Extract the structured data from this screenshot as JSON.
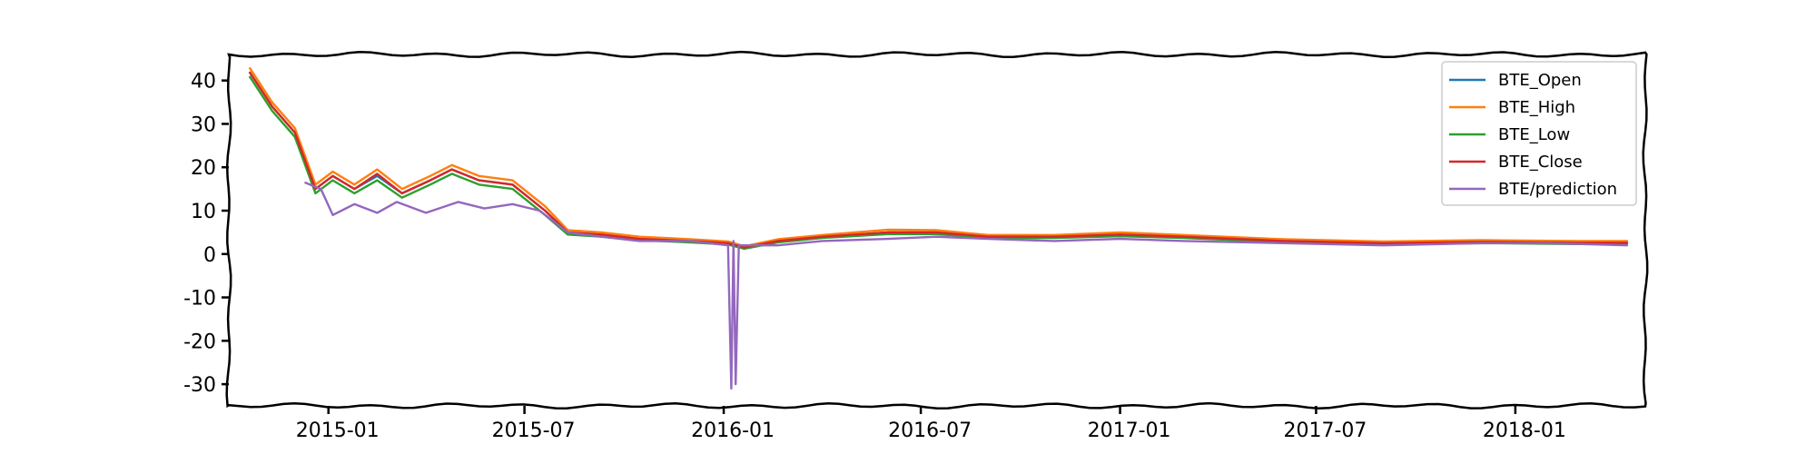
{
  "chart_data": {
    "type": "line",
    "title": "",
    "xlabel": "",
    "ylabel": "",
    "x_range": [
      "2014-10-01",
      "2018-05-01"
    ],
    "x_ticks": [
      "2015-01",
      "2015-07",
      "2016-01",
      "2016-07",
      "2017-01",
      "2017-07",
      "2018-01"
    ],
    "ylim": [
      -35,
      46
    ],
    "y_ticks": [
      40,
      30,
      20,
      10,
      0,
      -10,
      -20,
      -30
    ],
    "grid": false,
    "legend_position": "top-right",
    "series": [
      {
        "name": "BTE_Open",
        "color": "#1f77b4",
        "points": [
          [
            "2014-10-20",
            42
          ],
          [
            "2014-11-10",
            34
          ],
          [
            "2014-12-01",
            28
          ],
          [
            "2014-12-20",
            15
          ],
          [
            "2015-01-05",
            18
          ],
          [
            "2015-01-25",
            15
          ],
          [
            "2015-02-15",
            18
          ],
          [
            "2015-03-10",
            14
          ],
          [
            "2015-04-05",
            17
          ],
          [
            "2015-04-25",
            19.5
          ],
          [
            "2015-05-20",
            17
          ],
          [
            "2015-06-20",
            16
          ],
          [
            "2015-07-20",
            10
          ],
          [
            "2015-08-10",
            5
          ],
          [
            "2015-09-10",
            4.5
          ],
          [
            "2015-10-15",
            3.5
          ],
          [
            "2015-12-01",
            3
          ],
          [
            "2016-01-05",
            2.5
          ],
          [
            "2016-01-20",
            1.5
          ],
          [
            "2016-02-20",
            3
          ],
          [
            "2016-04-01",
            4
          ],
          [
            "2016-06-01",
            5
          ],
          [
            "2016-07-15",
            5
          ],
          [
            "2016-09-01",
            4
          ],
          [
            "2016-11-01",
            4
          ],
          [
            "2017-01-01",
            4.5
          ],
          [
            "2017-03-01",
            4
          ],
          [
            "2017-06-01",
            3
          ],
          [
            "2017-09-01",
            2.5
          ],
          [
            "2017-12-01",
            2.8
          ],
          [
            "2018-03-01",
            2.6
          ],
          [
            "2018-04-15",
            2.6
          ]
        ]
      },
      {
        "name": "BTE_High",
        "color": "#ff7f0e",
        "points": [
          [
            "2014-10-20",
            43
          ],
          [
            "2014-11-10",
            35
          ],
          [
            "2014-12-01",
            29
          ],
          [
            "2014-12-20",
            16
          ],
          [
            "2015-01-05",
            19
          ],
          [
            "2015-01-25",
            16
          ],
          [
            "2015-02-15",
            19.5
          ],
          [
            "2015-03-10",
            15
          ],
          [
            "2015-04-05",
            18
          ],
          [
            "2015-04-25",
            20.5
          ],
          [
            "2015-05-20",
            18
          ],
          [
            "2015-06-20",
            17
          ],
          [
            "2015-07-20",
            11
          ],
          [
            "2015-08-10",
            5.5
          ],
          [
            "2015-09-10",
            5
          ],
          [
            "2015-10-15",
            4
          ],
          [
            "2015-12-01",
            3.4
          ],
          [
            "2016-01-05",
            2.9
          ],
          [
            "2016-01-20",
            1.8
          ],
          [
            "2016-02-20",
            3.4
          ],
          [
            "2016-04-01",
            4.4
          ],
          [
            "2016-06-01",
            5.6
          ],
          [
            "2016-07-15",
            5.5
          ],
          [
            "2016-09-01",
            4.4
          ],
          [
            "2016-11-01",
            4.4
          ],
          [
            "2017-01-01",
            5
          ],
          [
            "2017-03-01",
            4.4
          ],
          [
            "2017-06-01",
            3.4
          ],
          [
            "2017-09-01",
            2.9
          ],
          [
            "2017-12-01",
            3.2
          ],
          [
            "2018-03-01",
            3
          ],
          [
            "2018-04-15",
            3
          ]
        ]
      },
      {
        "name": "BTE_Low",
        "color": "#2ca02c",
        "points": [
          [
            "2014-10-20",
            41
          ],
          [
            "2014-11-10",
            33
          ],
          [
            "2014-12-01",
            27
          ],
          [
            "2014-12-20",
            14
          ],
          [
            "2015-01-05",
            17
          ],
          [
            "2015-01-25",
            14
          ],
          [
            "2015-02-15",
            17
          ],
          [
            "2015-03-10",
            13
          ],
          [
            "2015-04-05",
            16
          ],
          [
            "2015-04-25",
            18.5
          ],
          [
            "2015-05-20",
            16
          ],
          [
            "2015-06-20",
            15
          ],
          [
            "2015-07-20",
            9
          ],
          [
            "2015-08-10",
            4.5
          ],
          [
            "2015-09-10",
            4
          ],
          [
            "2015-10-15",
            3.2
          ],
          [
            "2015-12-01",
            2.7
          ],
          [
            "2016-01-05",
            2.2
          ],
          [
            "2016-01-20",
            1.2
          ],
          [
            "2016-02-20",
            2.7
          ],
          [
            "2016-04-01",
            3.7
          ],
          [
            "2016-06-01",
            4.6
          ],
          [
            "2016-07-15",
            4.6
          ],
          [
            "2016-09-01",
            3.7
          ],
          [
            "2016-11-01",
            3.7
          ],
          [
            "2017-01-01",
            4.1
          ],
          [
            "2017-03-01",
            3.7
          ],
          [
            "2017-06-01",
            2.7
          ],
          [
            "2017-09-01",
            2.2
          ],
          [
            "2017-12-01",
            2.5
          ],
          [
            "2018-03-01",
            2.3
          ],
          [
            "2018-04-15",
            2.3
          ]
        ]
      },
      {
        "name": "BTE_Close",
        "color": "#d62728",
        "points": [
          [
            "2014-10-20",
            42
          ],
          [
            "2014-11-10",
            34
          ],
          [
            "2014-12-01",
            28
          ],
          [
            "2014-12-20",
            15
          ],
          [
            "2015-01-05",
            18
          ],
          [
            "2015-01-25",
            15
          ],
          [
            "2015-02-15",
            18.5
          ],
          [
            "2015-03-10",
            14
          ],
          [
            "2015-04-05",
            17
          ],
          [
            "2015-04-25",
            19.5
          ],
          [
            "2015-05-20",
            17
          ],
          [
            "2015-06-20",
            16
          ],
          [
            "2015-07-20",
            10
          ],
          [
            "2015-08-10",
            5
          ],
          [
            "2015-09-10",
            4.5
          ],
          [
            "2015-10-15",
            3.5
          ],
          [
            "2015-12-01",
            3
          ],
          [
            "2016-01-05",
            2.5
          ],
          [
            "2016-01-20",
            1.5
          ],
          [
            "2016-02-20",
            3
          ],
          [
            "2016-04-01",
            4
          ],
          [
            "2016-06-01",
            5
          ],
          [
            "2016-07-15",
            5
          ],
          [
            "2016-09-01",
            4
          ],
          [
            "2016-11-01",
            4
          ],
          [
            "2017-01-01",
            4.5
          ],
          [
            "2017-03-01",
            4
          ],
          [
            "2017-06-01",
            3
          ],
          [
            "2017-09-01",
            2.5
          ],
          [
            "2017-12-01",
            2.8
          ],
          [
            "2018-03-01",
            2.6
          ],
          [
            "2018-04-15",
            2.6
          ]
        ]
      },
      {
        "name": "BTE/prediction",
        "color": "#9467bd",
        "points": [
          [
            "2014-12-10",
            16.5
          ],
          [
            "2014-12-25",
            15
          ],
          [
            "2015-01-05",
            9
          ],
          [
            "2015-01-25",
            11.5
          ],
          [
            "2015-02-15",
            9.5
          ],
          [
            "2015-03-05",
            12
          ],
          [
            "2015-04-01",
            9.5
          ],
          [
            "2015-05-01",
            12
          ],
          [
            "2015-05-25",
            10.5
          ],
          [
            "2015-06-20",
            11.5
          ],
          [
            "2015-07-15",
            10
          ],
          [
            "2015-08-10",
            5
          ],
          [
            "2015-09-10",
            4
          ],
          [
            "2015-10-15",
            3
          ],
          [
            "2015-12-01",
            3
          ],
          [
            "2016-01-05",
            2
          ],
          [
            "2016-01-08",
            -31
          ],
          [
            "2016-01-10",
            3
          ],
          [
            "2016-01-12",
            -30
          ],
          [
            "2016-01-15",
            2
          ],
          [
            "2016-02-20",
            2
          ],
          [
            "2016-04-01",
            3
          ],
          [
            "2016-06-01",
            3.5
          ],
          [
            "2016-07-15",
            4
          ],
          [
            "2016-09-01",
            3.5
          ],
          [
            "2016-11-01",
            3
          ],
          [
            "2017-01-01",
            3.5
          ],
          [
            "2017-03-01",
            3
          ],
          [
            "2017-06-01",
            2.5
          ],
          [
            "2017-09-01",
            2
          ],
          [
            "2017-12-01",
            2.5
          ],
          [
            "2018-02-01",
            2.5
          ],
          [
            "2018-04-15",
            2
          ]
        ]
      }
    ]
  }
}
